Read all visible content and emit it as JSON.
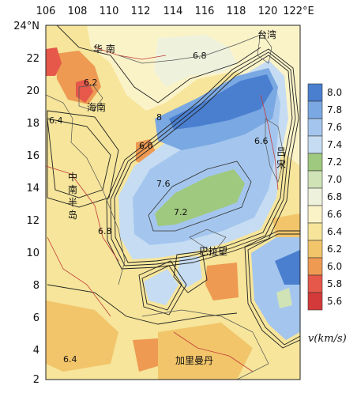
{
  "map": {
    "x_ticks": [
      "106",
      "108",
      "110",
      "112",
      "114",
      "116",
      "118",
      "120",
      "122°E"
    ],
    "y_ticks": [
      "24°N",
      "22",
      "20",
      "18",
      "16",
      "14",
      "12",
      "10",
      "8",
      "6",
      "4",
      "2"
    ],
    "places": {
      "huanan": "华 南",
      "taiwan": "台湾",
      "hainan": "海南",
      "lvsong": "吕宋",
      "zhongnan": "中南半岛",
      "balawang": "巴拉望",
      "jialimandan": "加里曼丹"
    },
    "contour_labels": [
      "6.8",
      "6.6",
      "6.4",
      "6.2",
      "6.0",
      "7.6",
      "7.2",
      "8",
      "6.4",
      "6.8"
    ],
    "legend": {
      "title": "v(km/s)",
      "values": [
        "8.0",
        "7.8",
        "7.6",
        "7.4",
        "7.2",
        "7.0",
        "6.8",
        "6.6",
        "6.4",
        "6.2",
        "6.0",
        "5.8",
        "5.6"
      ],
      "colors": [
        "#4a7fd0",
        "#7aa8e2",
        "#a4c6ee",
        "#c6dcf2",
        "#9fc97e",
        "#cfe3b7",
        "#eef2dd",
        "#fbf3c8",
        "#f6e59a",
        "#f2c56a",
        "#ee9a52",
        "#e5584a",
        "#d43a3a"
      ]
    }
  }
}
